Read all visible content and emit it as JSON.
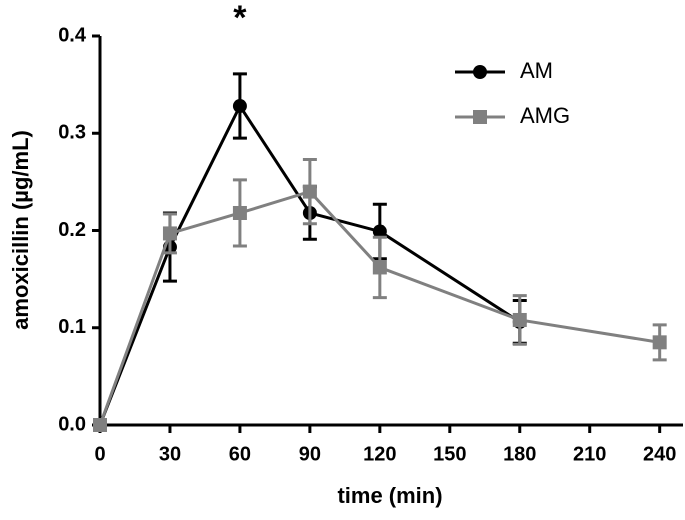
{
  "chart_data": {
    "type": "line",
    "xlabel": "time (min)",
    "ylabel": "amoxicillin (µg/mL)",
    "x": [
      0,
      30,
      60,
      90,
      120,
      180,
      240
    ],
    "series": [
      {
        "name": "AM",
        "color": "#000000",
        "marker": "circle",
        "values": [
          0,
          0.183,
          0.328,
          0.218,
          0.199,
          0.106,
          null
        ],
        "errors": [
          null,
          0.035,
          0.033,
          0.027,
          0.028,
          0.022,
          null
        ]
      },
      {
        "name": "AMG",
        "color": "#808080",
        "marker": "square",
        "values": [
          0,
          0.197,
          0.218,
          0.24,
          0.162,
          0.108,
          0.085
        ],
        "errors": [
          null,
          0.02,
          0.034,
          0.033,
          0.031,
          0.025,
          0.018
        ]
      }
    ],
    "xlim": [
      0,
      250
    ],
    "xticks": [
      0,
      30,
      60,
      90,
      120,
      150,
      180,
      210,
      240
    ],
    "ylim": [
      0,
      0.4
    ],
    "yticks": [
      {
        "value": 0,
        "label": "0.0"
      },
      0.1,
      0.2,
      0.3,
      0.4
    ],
    "annotations": [
      {
        "text": "*",
        "x": 60
      }
    ],
    "legend": "upper right"
  }
}
